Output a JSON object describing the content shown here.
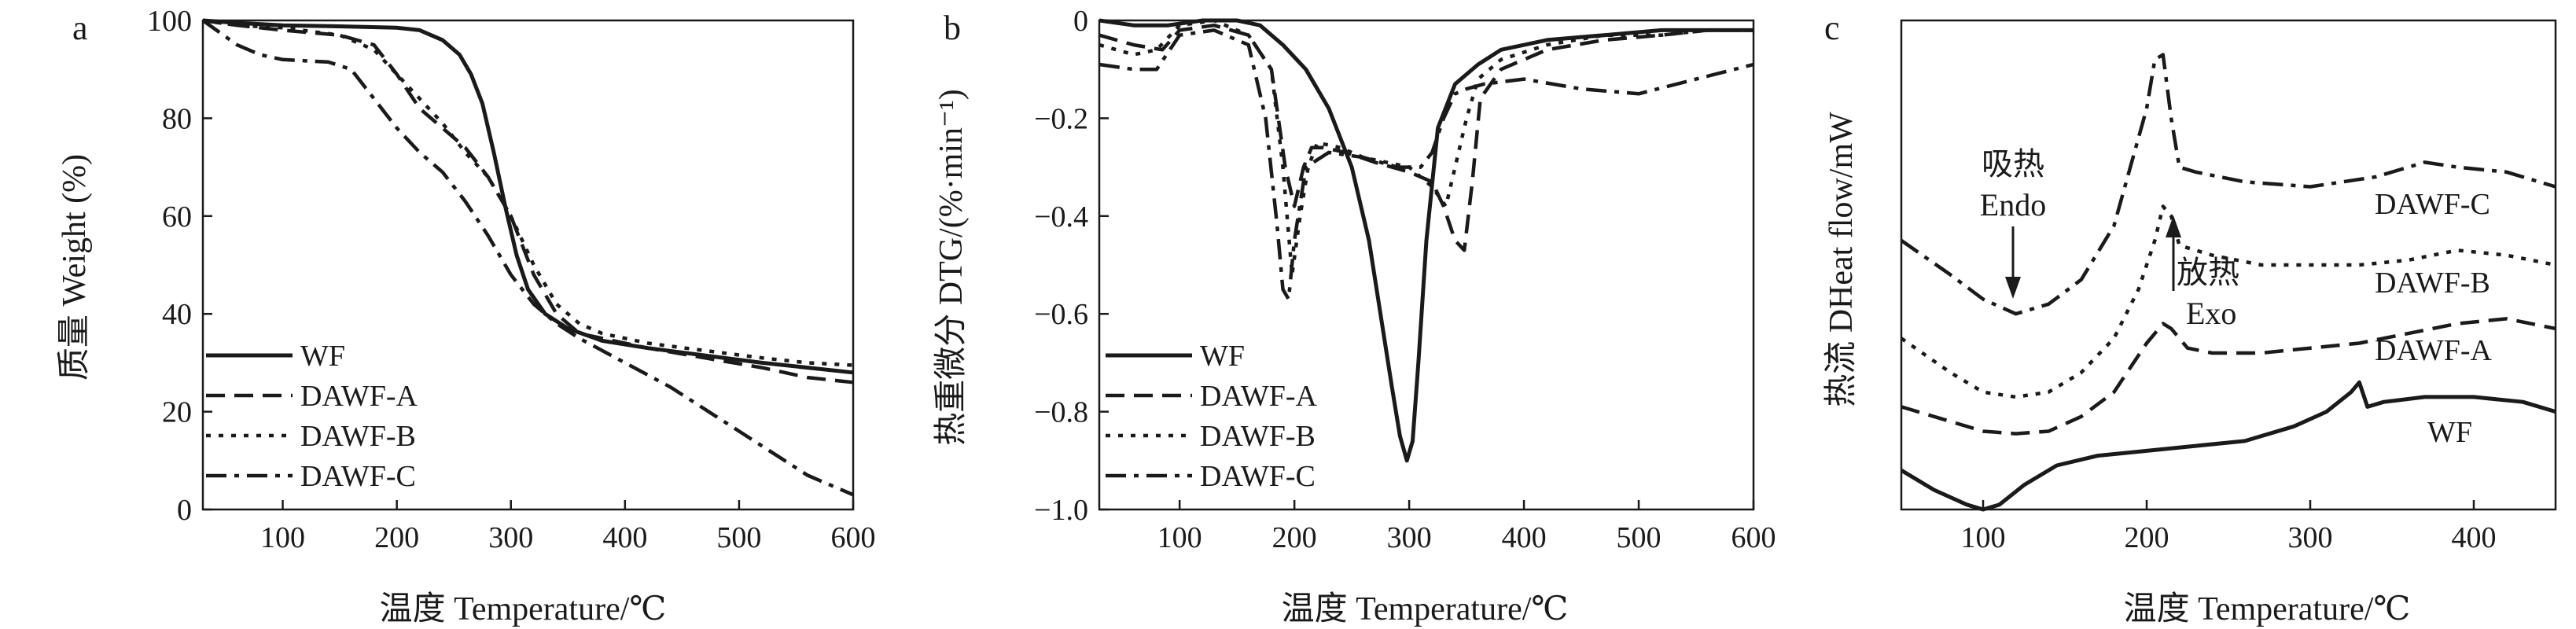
{
  "panel_labels": [
    "a",
    "b",
    "c"
  ],
  "colors": {
    "ink": "#1a1a1a",
    "background": "#ffffff"
  },
  "chart_data": [
    {
      "id": "a",
      "type": "line",
      "xlabel": "温度 Temperature/℃",
      "ylabel": "质量 Weight (%)",
      "xlim": [
        30,
        600
      ],
      "ylim": [
        0,
        100
      ],
      "xticks": [
        100,
        200,
        300,
        400,
        500,
        600
      ],
      "yticks": [
        0,
        20,
        40,
        60,
        80,
        100
      ],
      "legend_position": "bottom-left",
      "series": [
        {
          "name": "WF",
          "style": "solid",
          "x": [
            30,
            60,
            100,
            150,
            200,
            220,
            240,
            255,
            265,
            275,
            285,
            295,
            305,
            315,
            330,
            350,
            380,
            420,
            470,
            520,
            560,
            600
          ],
          "y": [
            100,
            99.5,
            99,
            98.8,
            98.5,
            98,
            96,
            93,
            89,
            83,
            73,
            62,
            52,
            45,
            40,
            37,
            34.5,
            33,
            31.5,
            30,
            29,
            28
          ]
        },
        {
          "name": "DAWF-A",
          "style": "dash",
          "x": [
            30,
            60,
            100,
            150,
            180,
            200,
            220,
            240,
            260,
            280,
            300,
            320,
            340,
            360,
            380,
            420,
            470,
            520,
            560,
            600
          ],
          "y": [
            100,
            99,
            98,
            97,
            95,
            89,
            82,
            78,
            74,
            68,
            60,
            48,
            40,
            36,
            35,
            33,
            31,
            29,
            27,
            26
          ]
        },
        {
          "name": "DAWF-B",
          "style": "dot",
          "x": [
            30,
            60,
            100,
            150,
            180,
            200,
            220,
            240,
            260,
            280,
            300,
            320,
            340,
            360,
            380,
            420,
            470,
            520,
            560,
            600
          ],
          "y": [
            100,
            99,
            98.5,
            97,
            94,
            89,
            84,
            79,
            73,
            68,
            60,
            50,
            42,
            38,
            36,
            34,
            32.5,
            31,
            30,
            29.5
          ]
        },
        {
          "name": "DAWF-C",
          "style": "dashdot",
          "x": [
            30,
            60,
            80,
            100,
            140,
            160,
            180,
            200,
            220,
            240,
            260,
            280,
            300,
            320,
            340,
            360,
            400,
            440,
            480,
            520,
            560,
            600
          ],
          "y": [
            100,
            95,
            93,
            92,
            91.5,
            90,
            84,
            78,
            73,
            69,
            63,
            56,
            48,
            42,
            38,
            35,
            30,
            25,
            19,
            13,
            7,
            3
          ]
        }
      ]
    },
    {
      "id": "b",
      "type": "line",
      "xlabel": "温度 Temperature/℃",
      "ylabel": "热重微分 DTG/(%·min⁻¹)",
      "xlim": [
        30,
        600
      ],
      "ylim": [
        -1.0,
        0
      ],
      "xticks": [
        100,
        200,
        300,
        400,
        500,
        600
      ],
      "yticks": [
        0,
        -0.2,
        -0.4,
        -0.6,
        -0.8,
        -1.0
      ],
      "ytick_labels": [
        "0",
        "−0.2",
        "−0.4",
        "−0.6",
        "−0.8",
        "−1.0"
      ],
      "legend_position": "bottom-left",
      "series": [
        {
          "name": "WF",
          "style": "solid",
          "x": [
            30,
            60,
            90,
            120,
            150,
            170,
            190,
            210,
            230,
            250,
            265,
            275,
            285,
            292,
            298,
            303,
            308,
            315,
            325,
            340,
            360,
            380,
            420,
            470,
            520,
            560,
            600
          ],
          "y": [
            0,
            -0.01,
            -0.01,
            0,
            0,
            -0.01,
            -0.05,
            -0.1,
            -0.18,
            -0.3,
            -0.45,
            -0.6,
            -0.75,
            -0.85,
            -0.9,
            -0.86,
            -0.7,
            -0.45,
            -0.22,
            -0.13,
            -0.09,
            -0.06,
            -0.04,
            -0.03,
            -0.02,
            -0.02,
            -0.02
          ]
        },
        {
          "name": "DAWF-A",
          "style": "dash",
          "x": [
            30,
            60,
            85,
            100,
            130,
            160,
            180,
            192,
            200,
            208,
            215,
            225,
            245,
            270,
            300,
            320,
            330,
            340,
            348,
            355,
            362,
            380,
            420,
            470,
            520,
            560,
            600
          ],
          "y": [
            -0.03,
            -0.05,
            -0.06,
            -0.02,
            -0.01,
            -0.03,
            -0.1,
            -0.3,
            -0.38,
            -0.3,
            -0.26,
            -0.26,
            -0.27,
            -0.29,
            -0.31,
            -0.33,
            -0.38,
            -0.45,
            -0.47,
            -0.33,
            -0.16,
            -0.1,
            -0.06,
            -0.04,
            -0.03,
            -0.02,
            -0.02
          ]
        },
        {
          "name": "DAWF-B",
          "style": "dot",
          "x": [
            30,
            60,
            80,
            100,
            130,
            160,
            180,
            190,
            198,
            205,
            212,
            220,
            240,
            260,
            280,
            300,
            320,
            332,
            340,
            350,
            360,
            380,
            420,
            470,
            520,
            560,
            600
          ],
          "y": [
            -0.05,
            -0.07,
            -0.06,
            -0.01,
            0,
            -0.03,
            -0.1,
            -0.3,
            -0.52,
            -0.4,
            -0.3,
            -0.25,
            -0.26,
            -0.28,
            -0.29,
            -0.3,
            -0.34,
            -0.38,
            -0.3,
            -0.2,
            -0.12,
            -0.08,
            -0.05,
            -0.03,
            -0.03,
            -0.02,
            -0.02
          ]
        },
        {
          "name": "DAWF-C",
          "style": "dashdot",
          "x": [
            30,
            60,
            80,
            100,
            130,
            160,
            175,
            185,
            190,
            195,
            200,
            210,
            230,
            260,
            290,
            310,
            320,
            330,
            340,
            350,
            365,
            400,
            450,
            500,
            550,
            600
          ],
          "y": [
            -0.09,
            -0.1,
            -0.1,
            -0.03,
            -0.02,
            -0.05,
            -0.2,
            -0.42,
            -0.55,
            -0.57,
            -0.45,
            -0.3,
            -0.27,
            -0.28,
            -0.3,
            -0.3,
            -0.27,
            -0.2,
            -0.15,
            -0.14,
            -0.13,
            -0.12,
            -0.14,
            -0.15,
            -0.12,
            -0.09
          ]
        }
      ]
    },
    {
      "id": "c",
      "type": "line",
      "xlabel": "温度 Temperature/℃",
      "ylabel": "热流 DHeat flow/mW",
      "xlim": [
        50,
        450
      ],
      "ylim": [
        0,
        100
      ],
      "xticks": [
        100,
        200,
        300,
        400
      ],
      "yticks": [],
      "series": [
        {
          "name": "WF",
          "style": "solid",
          "x": [
            50,
            70,
            90,
            100,
            110,
            125,
            145,
            170,
            200,
            230,
            260,
            290,
            310,
            325,
            330,
            335,
            345,
            370,
            400,
            430,
            450
          ],
          "y": [
            8,
            4,
            1,
            0,
            1,
            5,
            9,
            11,
            12,
            13,
            14,
            17,
            20,
            24,
            26,
            21,
            22,
            23,
            23,
            22,
            20
          ]
        },
        {
          "name": "DAWF-A",
          "style": "dash",
          "x": [
            50,
            80,
            100,
            120,
            140,
            160,
            180,
            200,
            210,
            215,
            225,
            240,
            270,
            300,
            330,
            360,
            390,
            420,
            450
          ],
          "y": [
            21,
            18,
            16,
            15.5,
            16,
            19,
            24,
            34,
            38,
            37,
            33,
            32,
            32,
            33,
            34,
            36,
            38,
            39,
            37
          ]
        },
        {
          "name": "DAWF-B",
          "style": "dot",
          "x": [
            50,
            80,
            100,
            120,
            140,
            160,
            180,
            195,
            205,
            210,
            215,
            220,
            240,
            270,
            300,
            330,
            360,
            390,
            420,
            450
          ],
          "y": [
            35,
            28,
            24,
            23,
            24,
            28,
            35,
            45,
            55,
            62,
            60,
            54,
            52,
            50,
            50,
            50,
            51,
            53,
            52,
            50
          ]
        },
        {
          "name": "DAWF-C",
          "style": "dashdot",
          "x": [
            50,
            80,
            100,
            120,
            140,
            160,
            180,
            190,
            200,
            205,
            210,
            215,
            220,
            230,
            260,
            300,
            340,
            370,
            390,
            420,
            450
          ],
          "y": [
            55,
            48,
            43,
            40,
            42,
            47,
            58,
            70,
            82,
            92,
            93,
            80,
            70,
            69,
            67,
            66,
            68,
            71,
            70,
            69,
            66
          ]
        }
      ],
      "curve_labels": [
        {
          "text": "DAWF-C",
          "for": "DAWF-C"
        },
        {
          "text": "DAWF-B",
          "for": "DAWF-B"
        },
        {
          "text": "DAWF-A",
          "for": "DAWF-A"
        },
        {
          "text": "WF",
          "for": "WF"
        }
      ],
      "annotations": {
        "endo": [
          "吸热",
          "Endo"
        ],
        "exo": [
          "放热",
          "Exo"
        ]
      }
    }
  ]
}
